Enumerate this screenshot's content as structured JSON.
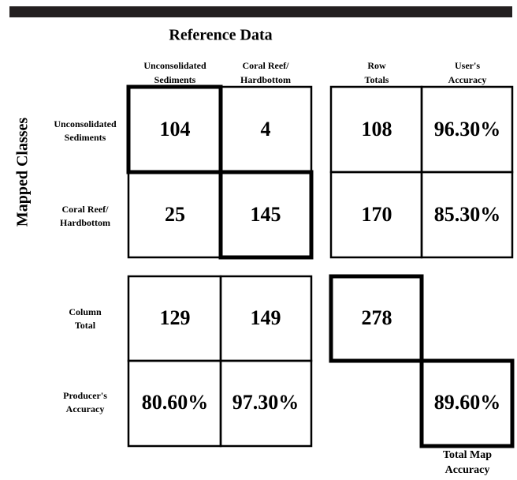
{
  "title": "Reference Data",
  "row_axis_title": "Mapped Classes",
  "columns": [
    [
      "Unconsolidated",
      "Sediments"
    ],
    [
      "Coral Reef/",
      "Hardbottom"
    ],
    [
      "Row",
      "Totals"
    ],
    [
      "User's",
      "Accuracy"
    ]
  ],
  "rows": [
    {
      "label": [
        "Unconsolidated",
        "Sediments"
      ],
      "cells": [
        "104",
        "4",
        "108",
        "96.30%"
      ]
    },
    {
      "label": [
        "Coral Reef/",
        "Hardbottom"
      ],
      "cells": [
        "25",
        "145",
        "170",
        "85.30%"
      ]
    }
  ],
  "column_totals": {
    "label": [
      "Column",
      "Total"
    ],
    "cells": [
      "129",
      "149",
      "278"
    ]
  },
  "producers_accuracy": {
    "label": [
      "Producer's",
      "Accuracy"
    ],
    "cells": [
      "80.60%",
      "97.30%"
    ]
  },
  "total_map_accuracy": {
    "label": [
      "Total Map",
      "Accuracy"
    ],
    "value": "89.60%"
  }
}
